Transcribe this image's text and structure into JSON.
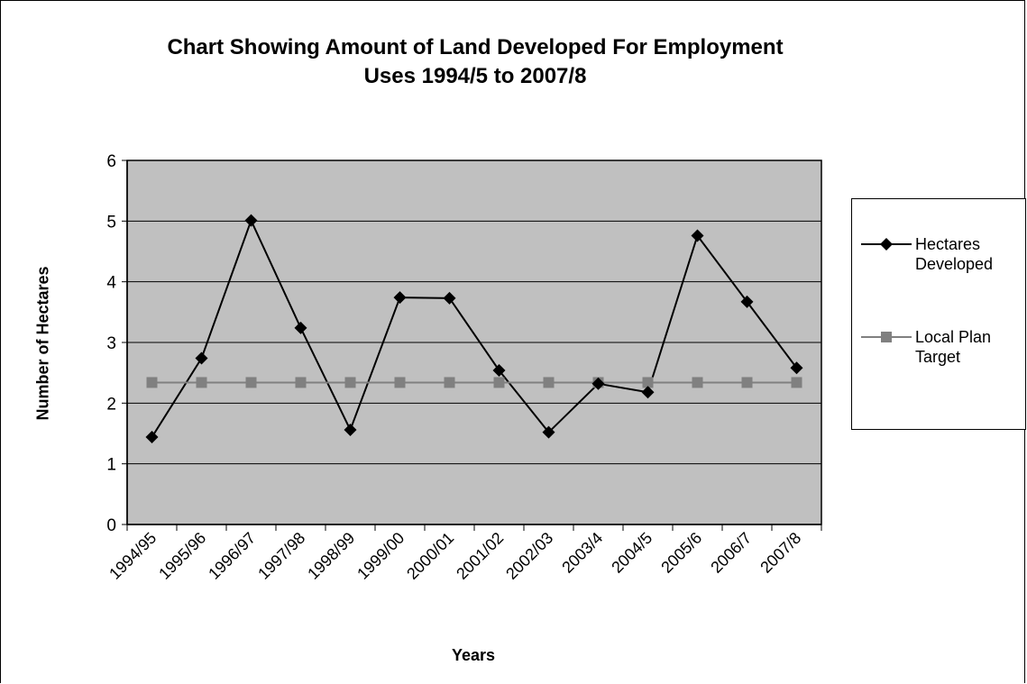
{
  "chart_data": {
    "type": "line",
    "title_lines": [
      "Chart Showing Amount of Land Developed For Employment",
      "Uses 1994/5 to 2007/8"
    ],
    "xlabel": "Years",
    "ylabel": "Number of Hectares",
    "ylim": [
      0,
      6
    ],
    "yticks": [
      "0",
      "1",
      "2",
      "3",
      "4",
      "5",
      "6"
    ],
    "grid": true,
    "legend_position": "right",
    "plot_background": "#c0c0c0",
    "categories": [
      "1994/95",
      "1995/96",
      "1996/97",
      "1997/98",
      "1998/99",
      "1999/00",
      "2000/01",
      "2001/02",
      "2002/03",
      "2003/4",
      "2004/5",
      "2005/6",
      "2006/7",
      "2007/8"
    ],
    "series": [
      {
        "name_lines": [
          "Hectares",
          "Developed"
        ],
        "color": "#000000",
        "marker": "diamond",
        "values": [
          1.44,
          2.74,
          5.01,
          3.24,
          1.56,
          3.74,
          3.73,
          2.54,
          1.52,
          2.32,
          2.18,
          4.76,
          3.67,
          2.58
        ]
      },
      {
        "name_lines": [
          "Local Plan",
          "Target"
        ],
        "color": "#808080",
        "marker": "square",
        "values": [
          2.34,
          2.34,
          2.34,
          2.34,
          2.34,
          2.34,
          2.34,
          2.34,
          2.34,
          2.34,
          2.34,
          2.34,
          2.34,
          2.34
        ]
      }
    ]
  }
}
